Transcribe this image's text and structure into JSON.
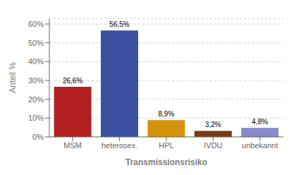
{
  "chart_data": {
    "type": "bar",
    "categories": [
      "MSM",
      "heterosex.",
      "HPL",
      "IVDU",
      "unbekannt"
    ],
    "values": [
      26.6,
      56.5,
      8.9,
      3.2,
      4.8
    ],
    "value_labels": [
      "26,6%",
      "56,5%",
      "8,9%",
      "3,2%",
      "4,8%"
    ],
    "colors": [
      "#b32020",
      "#3a4fa0",
      "#d4920a",
      "#7a3a10",
      "#8888cc"
    ],
    "xlabel": "Transmissionsrisiko",
    "ylabel": "Anteil %",
    "ylim": [
      0,
      63
    ],
    "yticks": [
      {
        "value": 0,
        "label": "0%"
      },
      {
        "value": 10,
        "label": "10%"
      },
      {
        "value": 20,
        "label": "20%"
      },
      {
        "value": 30,
        "label": "30%"
      },
      {
        "value": 40,
        "label": "40%"
      },
      {
        "value": 50,
        "label": "50%"
      },
      {
        "value": 60,
        "label": "60%"
      }
    ],
    "grid": true,
    "data_labels": true
  }
}
